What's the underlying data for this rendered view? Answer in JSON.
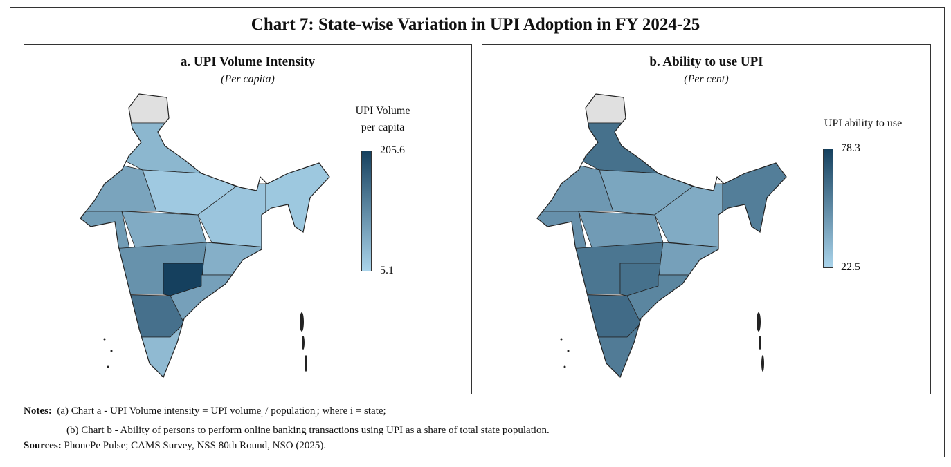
{
  "title": "Chart 7: State-wise Variation in UPI Adoption in FY 2024-25",
  "colors": {
    "low": "#aad4eb",
    "high": "#15405e",
    "nodata": "#e0e0e0",
    "border": "#222222"
  },
  "chart_data": [
    {
      "type": "choropleth",
      "title": "a. UPI Volume Intensity",
      "subtitle": "(Per capita)",
      "legend_title_1": "UPI Volume",
      "legend_title_2": "per capita",
      "max_label": "205.6",
      "min_label": "5.1",
      "range": [
        5.1,
        205.6
      ],
      "region_values": {
        "jk": null,
        "north": 45,
        "rajasthan": 70,
        "gujarat": 80,
        "up": 20,
        "mp": 60,
        "bihar": 25,
        "ne": 22,
        "maharashtra": 95,
        "east": 55,
        "telangana": 205.6,
        "andhra": 75,
        "karnataka": 140,
        "south": 40
      }
    },
    {
      "type": "choropleth",
      "title": "b. Ability to use UPI",
      "subtitle": "(Per cent)",
      "legend_title_1": "UPI ability to use",
      "legend_title_2": "",
      "max_label": "78.3",
      "min_label": "22.5",
      "range": [
        22.5,
        78.3
      ],
      "region_values": {
        "jk": null,
        "north": 60,
        "rajasthan": 45,
        "gujarat": 48,
        "up": 40,
        "mp": 44,
        "bihar": 38,
        "ne": 55,
        "maharashtra": 58,
        "east": 42,
        "telangana": 60,
        "andhra": 52,
        "karnataka": 62,
        "south": 56
      }
    }
  ],
  "notes": {
    "label": "Notes:",
    "a_prefix": "(a)  Chart a - UPI Volume intensity = UPI volume",
    "sub_i": "i",
    "a_mid": " / population",
    "a_suffix": "; where i = state;",
    "b": "(b)  Chart b - Ability of persons to perform online banking transactions using UPI as a share of total state population."
  },
  "sources": {
    "label": "Sources:",
    "text": " PhonePe Pulse; CAMS Survey, NSS 80th Round, NSO (2025)."
  }
}
